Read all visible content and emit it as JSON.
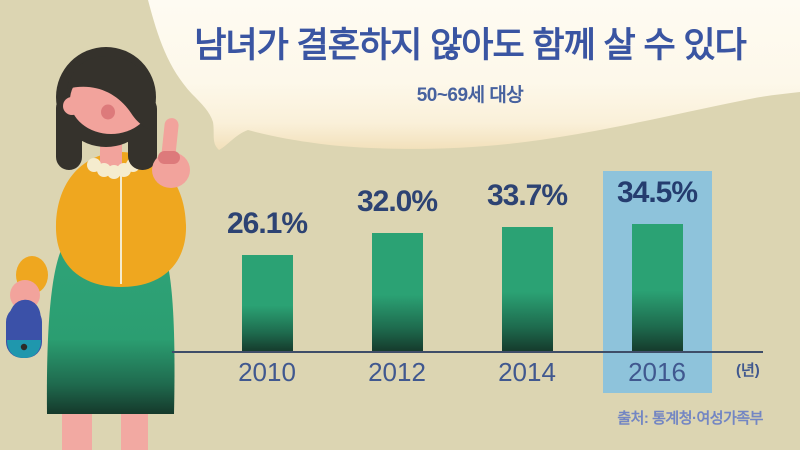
{
  "header": {
    "title": "남녀가 결혼하지 않아도 함께 살 수 있다",
    "subtitle": "50~69세 대상"
  },
  "footer": {
    "source": "출처: 통계청·여성가족부"
  },
  "chart_data": {
    "type": "bar",
    "title": "남녀가 결혼하지 않아도 함께 살 수 있다",
    "subtitle": "50~69세 대상",
    "categories": [
      "2010",
      "2012",
      "2014",
      "2016"
    ],
    "values": [
      26.1,
      32.0,
      33.7,
      34.5
    ],
    "value_labels": [
      "26.1%",
      "32.0%",
      "33.7%",
      "34.5%"
    ],
    "highlight_index": 3,
    "highlighted_category": "2016",
    "x_unit_label": "(년)",
    "ylim": [
      0,
      40
    ],
    "grid": false,
    "legend": false
  },
  "colors": {
    "background": "#dcd5b2",
    "bubble_top": "#fefbf2",
    "bubble_mid": "#fdf8ea",
    "bubble_edge": "#f2e0ba",
    "title_text": "#3a55a2",
    "subtitle_text": "#47629f",
    "value_text": "#2d4373",
    "value_text_highlight": "#253d6f",
    "year_text": "#40588f",
    "axis_line": "#3e4d68",
    "bar_top": "#2ba274",
    "bar_mid": "#1e6b4e",
    "bar_bottom": "#15392b",
    "highlight_box": "#8ec3db",
    "source_text": "#7386c3"
  },
  "illustration": {
    "name": "woman-pointing-up",
    "hair": "#35322c",
    "skin": "#f2a39c",
    "mouth": "#dd7a7b",
    "cardigan": "#efa71f",
    "collar": "#f5ecce",
    "skirt_top": "#2fa378",
    "skirt_low": "#1f6a4e",
    "skirt_bottom": "#15392b",
    "bag_blue": "#3b51a8",
    "bag_teal": "#1f97ad",
    "bag_clasp": "#2d2a26",
    "legs": "#f2a9a2"
  }
}
